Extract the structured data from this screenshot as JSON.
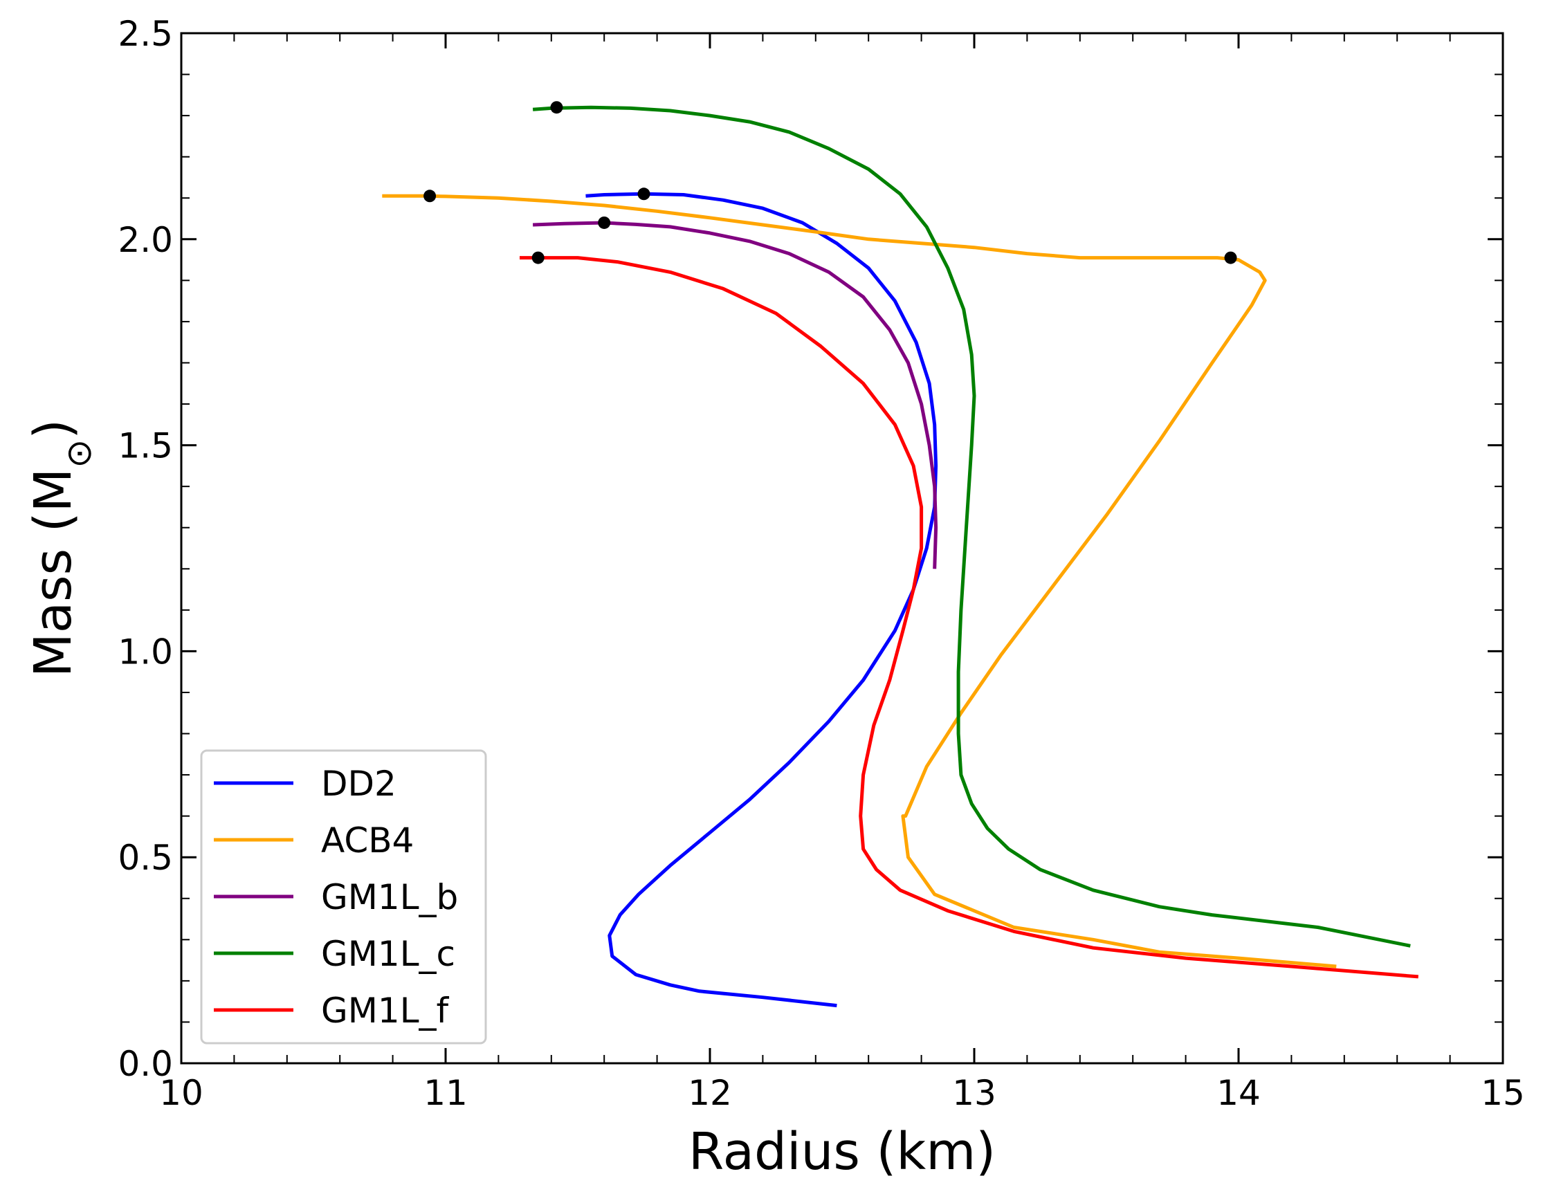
{
  "chart_data": {
    "type": "line",
    "title": "",
    "xlabel": "Radius (km)",
    "ylabel": "Mass (M",
    "ylabel_subscript": "⊙",
    "ylabel_close": ")",
    "xlim": [
      10,
      15
    ],
    "ylim": [
      0.0,
      2.5
    ],
    "xticks": [
      10,
      11,
      12,
      13,
      14,
      15
    ],
    "xtick_labels": [
      "10",
      "11",
      "12",
      "13",
      "14",
      "15"
    ],
    "yticks": [
      0.0,
      0.5,
      1.0,
      1.5,
      2.0,
      2.5
    ],
    "ytick_labels": [
      "0.0",
      "0.5",
      "1.0",
      "1.5",
      "2.0",
      "2.5"
    ],
    "x_minor_step": 0.2,
    "y_minor_step": 0.1,
    "grid": false,
    "legend_position": "lower-left",
    "series": [
      {
        "name": "DD2",
        "color": "#0000ff",
        "x": [
          12.48,
          12.2,
          11.96,
          11.85,
          11.72,
          11.63,
          11.62,
          11.66,
          11.73,
          11.85,
          12.0,
          12.15,
          12.3,
          12.45,
          12.58,
          12.7,
          12.77,
          12.82,
          12.85,
          12.855,
          12.85,
          12.83,
          12.78,
          12.7,
          12.6,
          12.48,
          12.35,
          12.2,
          12.05,
          11.9,
          11.75,
          11.6,
          11.53
        ],
        "y": [
          0.14,
          0.16,
          0.175,
          0.19,
          0.215,
          0.26,
          0.31,
          0.36,
          0.41,
          0.48,
          0.56,
          0.64,
          0.73,
          0.83,
          0.93,
          1.05,
          1.15,
          1.25,
          1.35,
          1.45,
          1.55,
          1.65,
          1.75,
          1.85,
          1.93,
          1.99,
          2.04,
          2.075,
          2.095,
          2.108,
          2.11,
          2.108,
          2.105
        ]
      },
      {
        "name": "ACB4",
        "color": "#ffa500",
        "x": [
          14.37,
          14.0,
          13.7,
          13.45,
          13.15,
          12.85,
          12.75,
          12.73,
          12.74,
          12.82,
          12.95,
          13.1,
          13.3,
          13.5,
          13.7,
          13.9,
          14.05,
          14.1,
          14.08,
          14.0,
          13.92,
          13.8,
          13.6,
          13.4,
          13.2,
          13.0,
          12.8,
          12.6,
          12.4,
          12.2,
          12.0,
          11.8,
          11.6,
          11.4,
          11.2,
          11.0,
          10.93,
          10.76
        ],
        "y": [
          0.235,
          0.255,
          0.27,
          0.3,
          0.33,
          0.41,
          0.5,
          0.6,
          0.6,
          0.72,
          0.85,
          0.99,
          1.16,
          1.33,
          1.51,
          1.7,
          1.84,
          1.9,
          1.92,
          1.95,
          1.955,
          1.955,
          1.955,
          1.955,
          1.965,
          1.98,
          1.99,
          2.0,
          2.018,
          2.035,
          2.052,
          2.068,
          2.082,
          2.092,
          2.1,
          2.104,
          2.105,
          2.105
        ]
      },
      {
        "name": "GM1L_b",
        "color": "#800080",
        "x": [
          12.85,
          12.855,
          12.85,
          12.83,
          12.8,
          12.75,
          12.68,
          12.58,
          12.45,
          12.3,
          12.15,
          12.0,
          11.85,
          11.72,
          11.6,
          11.45,
          11.33
        ],
        "y": [
          1.2,
          1.3,
          1.4,
          1.5,
          1.6,
          1.7,
          1.78,
          1.86,
          1.92,
          1.965,
          1.995,
          2.015,
          2.03,
          2.036,
          2.04,
          2.038,
          2.035
        ]
      },
      {
        "name": "GM1L_c",
        "color": "#008000",
        "x": [
          14.65,
          14.3,
          13.9,
          13.7,
          13.45,
          13.25,
          13.13,
          13.05,
          12.99,
          12.95,
          12.94,
          12.94,
          12.95,
          12.97,
          12.99,
          13.0,
          12.99,
          12.96,
          12.9,
          12.82,
          12.72,
          12.6,
          12.45,
          12.3,
          12.15,
          12.0,
          11.85,
          11.7,
          11.55,
          11.4,
          11.33
        ],
        "y": [
          0.285,
          0.33,
          0.36,
          0.38,
          0.42,
          0.47,
          0.52,
          0.57,
          0.63,
          0.7,
          0.8,
          0.95,
          1.1,
          1.3,
          1.5,
          1.62,
          1.72,
          1.83,
          1.93,
          2.03,
          2.11,
          2.17,
          2.22,
          2.26,
          2.285,
          2.3,
          2.312,
          2.318,
          2.32,
          2.318,
          2.315
        ]
      },
      {
        "name": "GM1L_f",
        "color": "#ff0000",
        "x": [
          14.68,
          14.2,
          13.8,
          13.45,
          13.15,
          12.9,
          12.72,
          12.63,
          12.58,
          12.57,
          12.58,
          12.62,
          12.68,
          12.73,
          12.77,
          12.8,
          12.8,
          12.77,
          12.7,
          12.58,
          12.42,
          12.25,
          12.05,
          11.85,
          11.65,
          11.5,
          11.34,
          11.28
        ],
        "y": [
          0.21,
          0.235,
          0.255,
          0.28,
          0.32,
          0.37,
          0.42,
          0.47,
          0.52,
          0.6,
          0.7,
          0.82,
          0.93,
          1.05,
          1.15,
          1.25,
          1.35,
          1.45,
          1.55,
          1.65,
          1.74,
          1.82,
          1.88,
          1.92,
          1.945,
          1.955,
          1.955,
          1.955
        ]
      }
    ],
    "markers": {
      "color": "#000000",
      "points": [
        {
          "series": "DD2",
          "x": 11.75,
          "y": 2.11
        },
        {
          "series": "ACB4",
          "x": 10.94,
          "y": 2.105
        },
        {
          "series": "ACB4",
          "x": 13.97,
          "y": 1.955
        },
        {
          "series": "GM1L_b",
          "x": 11.6,
          "y": 2.04
        },
        {
          "series": "GM1L_c",
          "x": 11.42,
          "y": 2.32
        },
        {
          "series": "GM1L_f",
          "x": 11.35,
          "y": 1.955
        }
      ]
    }
  }
}
